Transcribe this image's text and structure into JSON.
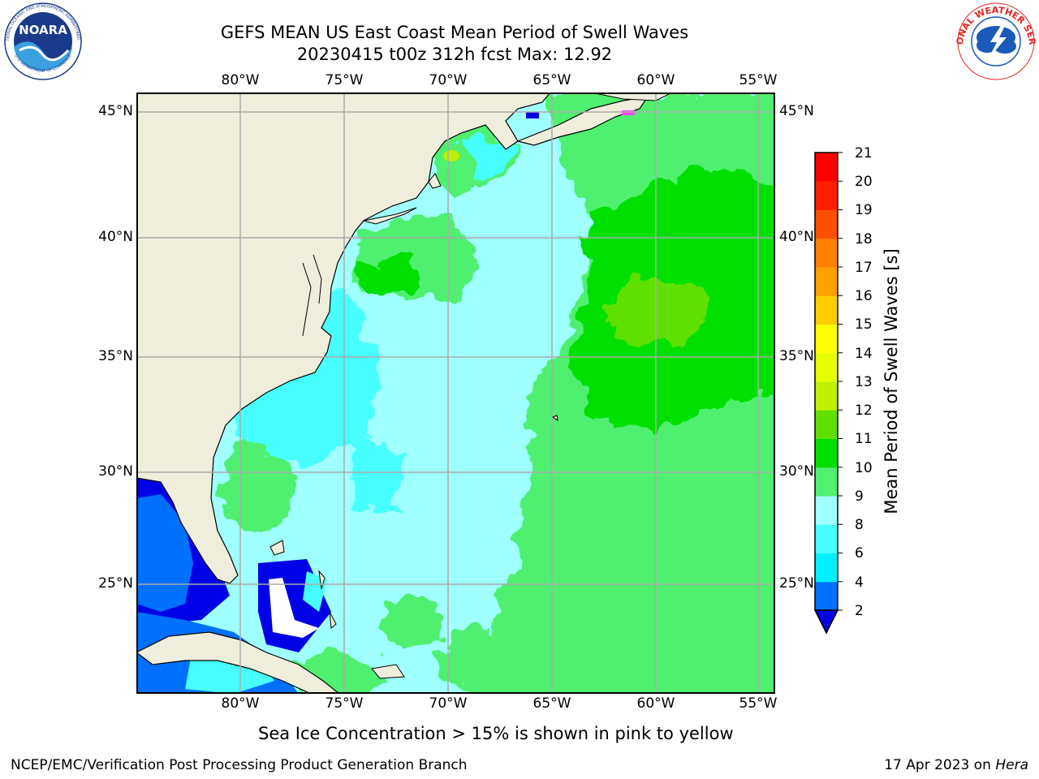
{
  "title_line1": "GEFS MEAN US East Coast Mean Period of Swell Waves",
  "title_line2": "20230415 t00z 312h fcst   Max: 12.92",
  "logos": {
    "left": {
      "name": "NOARA",
      "ring_text": "NATIONAL OCEANIC AND ATMOSPHERIC ADMINISTRATION",
      "bottom_text": "U.S. DEPARTMENT OF COMMERCE",
      "colors": [
        "#1a3a8a",
        "#3aa0e0",
        "#ffffff"
      ]
    },
    "right": {
      "ring_text": "NATIONAL WEATHER SERVICE",
      "colors": [
        "#e52521",
        "#1a5ab8",
        "#ffffff"
      ]
    }
  },
  "map": {
    "lon_labels": [
      "80°W",
      "75°W",
      "70°W",
      "65°W",
      "60°W",
      "55°W"
    ],
    "lat_labels": [
      "45°N",
      "40°N",
      "35°N",
      "30°N",
      "25°N"
    ],
    "extent": {
      "lon_min": -85,
      "lon_max": -54.2,
      "lat_min": 20.5,
      "lat_max": 46
    },
    "colors": {
      "land": "#efeedc",
      "border": "#000000",
      "grid": "#aaaaaa"
    }
  },
  "colorbar": {
    "label": "Mean Period of Swell Waves [s]",
    "tick_labels": [
      "2",
      "4",
      "6",
      "8",
      "9",
      "10",
      "11",
      "12",
      "13",
      "14",
      "15",
      "16",
      "17",
      "18",
      "19",
      "20",
      "21"
    ],
    "colors": [
      "#0000e6",
      "#0070ff",
      "#00f0ff",
      "#47ffff",
      "#a0ffff",
      "#50f070",
      "#00e000",
      "#60e000",
      "#c0f000",
      "#e6ff00",
      "#ffff00",
      "#ffcc00",
      "#ffa000",
      "#ff8000",
      "#ff5000",
      "#ff2000",
      "#ff0000"
    ]
  },
  "bottom_note": "Sea Ice Concentration > 15% is shown in pink to yellow",
  "footer": {
    "left": "NCEP/EMC/Verification Post Processing Product Generation Branch",
    "right_prefix": "17 Apr 2023 on ",
    "right_machine": "Hera"
  }
}
